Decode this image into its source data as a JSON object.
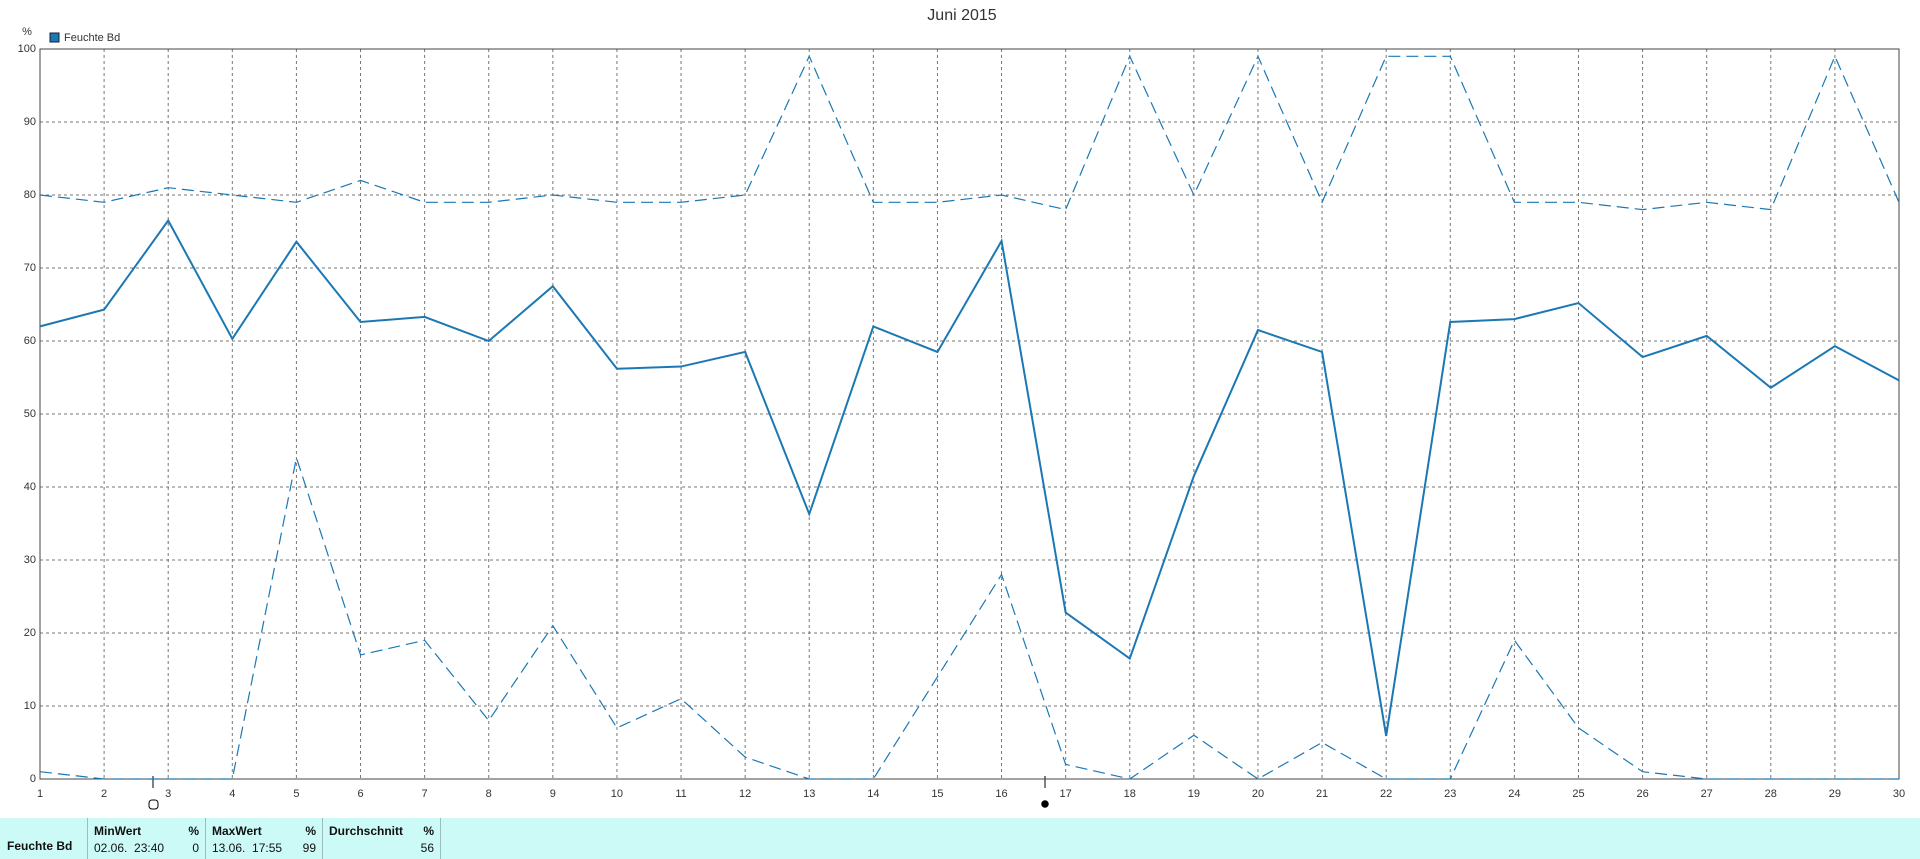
{
  "chart_data": {
    "type": "line",
    "title": "Juni 2015",
    "y_unit": "%",
    "x": [
      1,
      2,
      3,
      4,
      5,
      6,
      7,
      8,
      9,
      10,
      11,
      12,
      13,
      14,
      15,
      16,
      17,
      18,
      19,
      20,
      21,
      22,
      23,
      24,
      25,
      26,
      27,
      28,
      29,
      30
    ],
    "xlim": [
      1,
      30
    ],
    "xticks": [
      1,
      2,
      3,
      4,
      5,
      6,
      7,
      8,
      9,
      10,
      11,
      12,
      13,
      14,
      15,
      16,
      17,
      18,
      19,
      20,
      21,
      22,
      23,
      24,
      25,
      26,
      27,
      28,
      29,
      30
    ],
    "ylim": [
      0,
      100
    ],
    "yticks": [
      0,
      10,
      20,
      30,
      40,
      50,
      60,
      70,
      80,
      90,
      100
    ],
    "grid": true,
    "series": [
      {
        "name": "Feuchte Bd",
        "color": "#1b78b4",
        "values": [
          62,
          64.3,
          76.5,
          60.3,
          73.6,
          62.6,
          63.3,
          60,
          67.5,
          56.2,
          56.5,
          58.5,
          36.3,
          62,
          58.5,
          73.7,
          22.8,
          16.5,
          41.5,
          61.5,
          58.5,
          5.9,
          62.6,
          63,
          65.2,
          57.8,
          60.7,
          53.6,
          59.3,
          54.6
        ]
      },
      {
        "color": "#1b78b4",
        "dashed": true,
        "values": [
          80,
          79,
          81,
          80,
          79,
          82,
          79,
          79,
          80,
          79,
          79,
          80,
          99,
          79,
          79,
          80,
          78,
          99,
          80,
          99,
          79,
          99,
          99,
          79,
          79,
          78,
          79,
          78,
          99,
          79
        ]
      },
      {
        "color": "#1b78b4",
        "dashed": true,
        "values": [
          1,
          0,
          0,
          0,
          44,
          17,
          19,
          8,
          21,
          7,
          11,
          3,
          0,
          0,
          14,
          28,
          2,
          0,
          6,
          0,
          5,
          0,
          0,
          19,
          7,
          1,
          0,
          0,
          0,
          0
        ]
      }
    ]
  },
  "summary": {
    "label": "Feuchte Bd",
    "columns": [
      {
        "header": "MinWert",
        "unit": "%",
        "time": "02.06.  23:40",
        "value": "0"
      },
      {
        "header": "MaxWert",
        "unit": "%",
        "time": "13.06.  17:55",
        "value": "99"
      },
      {
        "header": "Durchschnitt",
        "unit": "%",
        "value": "56"
      }
    ]
  }
}
